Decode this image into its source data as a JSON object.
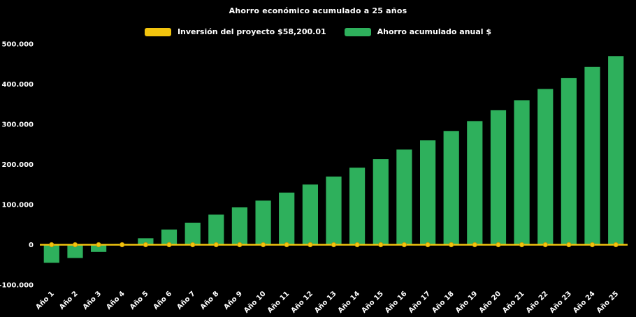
{
  "title": "Ahorro económico acumulado a 25 años",
  "colors": {
    "background": "#000000",
    "bar_green": "#2eb05c",
    "line_yellow": "#f2c40e",
    "text": "#ffffff"
  },
  "legend": {
    "items": [
      {
        "label": "Inversión del proyecto $58,200.01",
        "color": "#f2c40e",
        "series_type": "line"
      },
      {
        "label": "Ahorro acumulado anual $",
        "color": "#2eb05c",
        "series_type": "bar"
      }
    ]
  },
  "chart_data": {
    "type": "bar",
    "title": "Ahorro económico acumulado a 25 años",
    "xlabel": "",
    "ylabel": "",
    "ylim": [
      -100000,
      500000
    ],
    "grid": false,
    "legend_position": "top",
    "background": "#000000",
    "categories": [
      "Año 1",
      "Año 2",
      "Año 3",
      "Año 4",
      "Año 5",
      "Año 6",
      "Año 7",
      "Año 8",
      "Año 9",
      "Año 10",
      "Año 11",
      "Año 12",
      "Año 13",
      "Año 14",
      "Año 15",
      "Año 16",
      "Año 17",
      "Año 18",
      "Año 19",
      "Año 20",
      "Año 21",
      "Año 22",
      "Año 23",
      "Año 24",
      "Año 25"
    ],
    "y_ticks": [
      {
        "value": 500000,
        "label": "500.000"
      },
      {
        "value": 400000,
        "label": "400.000"
      },
      {
        "value": 300000,
        "label": "300.000"
      },
      {
        "value": 200000,
        "label": "200.000"
      },
      {
        "value": 100000,
        "label": "100.000"
      },
      {
        "value": 0,
        "label": "0"
      },
      {
        "value": -100000,
        "label": "-100.000"
      }
    ],
    "series": [
      {
        "name": "Ahorro acumulado anual $",
        "type": "bar",
        "color": "#2eb05c",
        "values": [
          -45000,
          -33000,
          -18000,
          2000,
          16000,
          38000,
          55000,
          75000,
          93000,
          110000,
          130000,
          150000,
          170000,
          192000,
          213000,
          237000,
          260000,
          283000,
          308000,
          335000,
          360000,
          388000,
          415000,
          443000,
          470000
        ]
      },
      {
        "name": "Inversión del proyecto $58,200.01",
        "type": "line",
        "color": "#f2c40e",
        "marker_stroke": "#d29a00",
        "values": [
          0,
          0,
          0,
          0,
          0,
          0,
          0,
          0,
          0,
          0,
          0,
          0,
          0,
          0,
          0,
          0,
          0,
          0,
          0,
          0,
          0,
          0,
          0,
          0,
          0
        ]
      }
    ]
  }
}
